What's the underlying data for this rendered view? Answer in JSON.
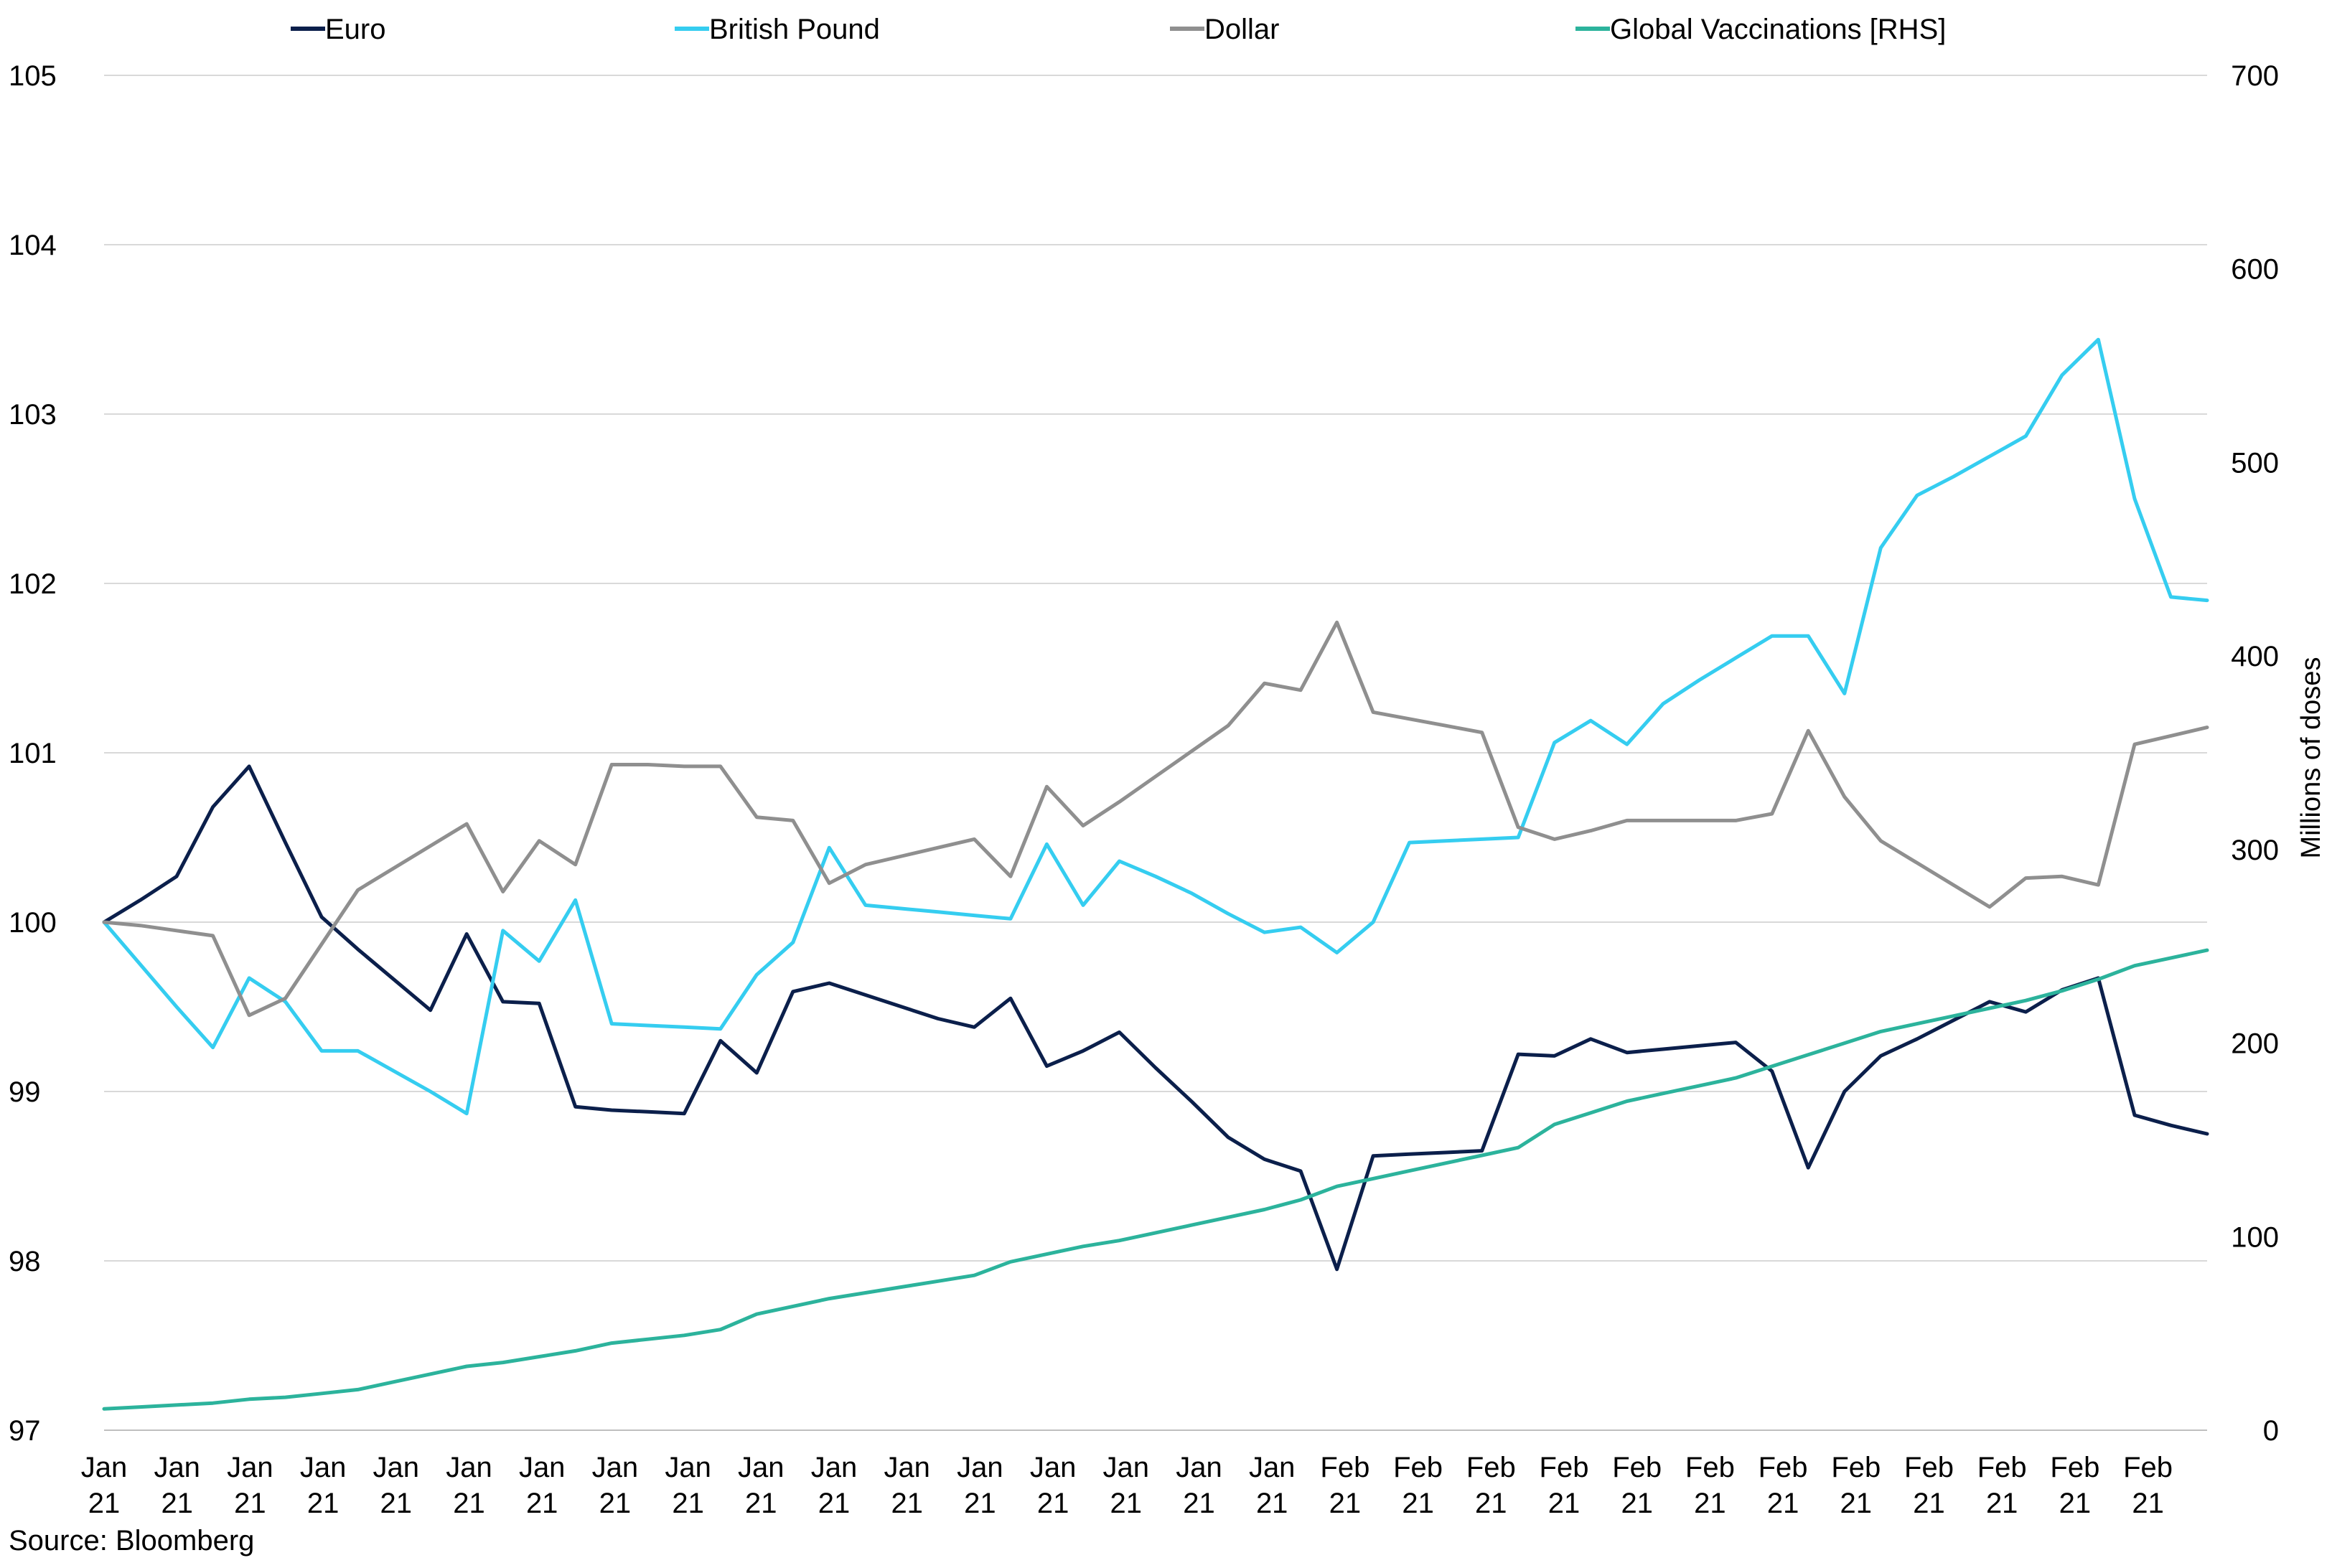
{
  "chart_data": {
    "type": "line",
    "title": "",
    "source": "Source: Bloomberg",
    "legend_position": "top",
    "grid": true,
    "y_left": {
      "ylim": [
        97,
        105
      ],
      "ticks": [
        "97",
        "98",
        "99",
        "100",
        "101",
        "102",
        "103",
        "104",
        "105"
      ]
    },
    "y_right": {
      "label": "Millions of doses",
      "ylim": [
        0,
        700
      ],
      "ticks": [
        "0",
        "100",
        "200",
        "300",
        "400",
        "500",
        "600",
        "700"
      ]
    },
    "x_tick_labels": [
      {
        "month": "Jan",
        "year": "21"
      },
      {
        "month": "Jan",
        "year": "21"
      },
      {
        "month": "Jan",
        "year": "21"
      },
      {
        "month": "Jan",
        "year": "21"
      },
      {
        "month": "Jan",
        "year": "21"
      },
      {
        "month": "Jan",
        "year": "21"
      },
      {
        "month": "Jan",
        "year": "21"
      },
      {
        "month": "Jan",
        "year": "21"
      },
      {
        "month": "Jan",
        "year": "21"
      },
      {
        "month": "Jan",
        "year": "21"
      },
      {
        "month": "Jan",
        "year": "21"
      },
      {
        "month": "Jan",
        "year": "21"
      },
      {
        "month": "Jan",
        "year": "21"
      },
      {
        "month": "Jan",
        "year": "21"
      },
      {
        "month": "Jan",
        "year": "21"
      },
      {
        "month": "Jan",
        "year": "21"
      },
      {
        "month": "Jan",
        "year": "21"
      },
      {
        "month": "Feb",
        "year": "21"
      },
      {
        "month": "Feb",
        "year": "21"
      },
      {
        "month": "Feb",
        "year": "21"
      },
      {
        "month": "Feb",
        "year": "21"
      },
      {
        "month": "Feb",
        "year": "21"
      },
      {
        "month": "Feb",
        "year": "21"
      },
      {
        "month": "Feb",
        "year": "21"
      },
      {
        "month": "Feb",
        "year": "21"
      },
      {
        "month": "Feb",
        "year": "21"
      },
      {
        "month": "Feb",
        "year": "21"
      },
      {
        "month": "Feb",
        "year": "21"
      },
      {
        "month": "Feb",
        "year": "21"
      }
    ],
    "series": [
      {
        "name": "Euro",
        "axis": "left",
        "color": "#0b1f4b",
        "values": [
          100.0,
          100.13,
          100.27,
          100.68,
          100.92,
          100.47,
          100.03,
          99.84,
          99.66,
          99.48,
          99.93,
          99.53,
          99.52,
          98.91,
          98.89,
          98.88,
          98.87,
          99.3,
          99.11,
          99.59,
          99.64,
          99.57,
          99.5,
          99.43,
          99.38,
          99.55,
          99.15,
          99.24,
          99.35,
          99.14,
          98.94,
          98.73,
          98.6,
          98.53,
          97.95,
          98.62,
          98.63,
          98.64,
          98.65,
          99.22,
          99.21,
          99.31,
          99.23,
          99.25,
          99.27,
          99.29,
          99.12,
          98.55,
          99.0,
          99.21,
          99.31,
          99.42,
          99.53,
          99.47,
          99.6,
          99.67,
          98.86,
          98.8,
          98.75
        ]
      },
      {
        "name": "British Pound",
        "axis": "left",
        "color": "#35cdf0",
        "values": [
          100.0,
          99.75,
          99.5,
          99.26,
          99.67,
          99.53,
          99.24,
          99.24,
          99.12,
          99.0,
          98.87,
          99.95,
          99.77,
          100.13,
          99.4,
          99.39,
          99.38,
          99.37,
          99.69,
          99.88,
          100.44,
          100.1,
          100.08,
          100.06,
          100.04,
          100.02,
          100.46,
          100.1,
          100.36,
          100.27,
          100.17,
          100.05,
          99.94,
          99.97,
          99.82,
          100.0,
          100.47,
          100.48,
          100.49,
          100.5,
          101.06,
          101.19,
          101.05,
          101.29,
          101.43,
          101.56,
          101.69,
          101.69,
          101.35,
          102.21,
          102.52,
          102.63,
          102.75,
          102.87,
          103.23,
          103.44,
          102.5,
          101.92,
          101.9
        ]
      },
      {
        "name": "Dollar",
        "axis": "left",
        "color": "#8f8f8f",
        "values": [
          100.0,
          99.98,
          99.95,
          99.92,
          99.45,
          99.55,
          99.87,
          100.19,
          100.32,
          100.45,
          100.58,
          100.18,
          100.48,
          100.34,
          100.93,
          100.93,
          100.92,
          100.92,
          100.62,
          100.6,
          100.23,
          100.34,
          100.39,
          100.44,
          100.49,
          100.27,
          100.8,
          100.57,
          100.71,
          100.86,
          101.01,
          101.16,
          101.41,
          101.37,
          101.77,
          101.24,
          101.2,
          101.16,
          101.12,
          100.56,
          100.49,
          100.54,
          100.6,
          100.6,
          100.6,
          100.6,
          100.64,
          101.13,
          100.74,
          100.48,
          100.35,
          100.22,
          100.09,
          100.26,
          100.27,
          100.22,
          101.05,
          101.1,
          101.15
        ]
      },
      {
        "name": "Global Vaccinations [RHS]",
        "axis": "right",
        "color": "#2cb39c",
        "values": [
          11,
          12,
          13,
          14,
          16,
          17,
          19,
          21,
          25,
          29,
          33,
          35,
          38,
          41,
          45,
          47,
          49,
          52,
          60,
          64,
          68,
          71,
          74,
          77,
          80,
          87,
          91,
          95,
          98,
          102,
          106,
          110,
          114,
          119,
          126,
          130,
          134,
          138,
          142,
          146,
          158,
          164,
          170,
          174,
          178,
          182,
          188,
          194,
          200,
          206,
          210,
          214,
          218,
          222,
          227,
          233,
          240,
          244,
          248
        ]
      }
    ]
  }
}
